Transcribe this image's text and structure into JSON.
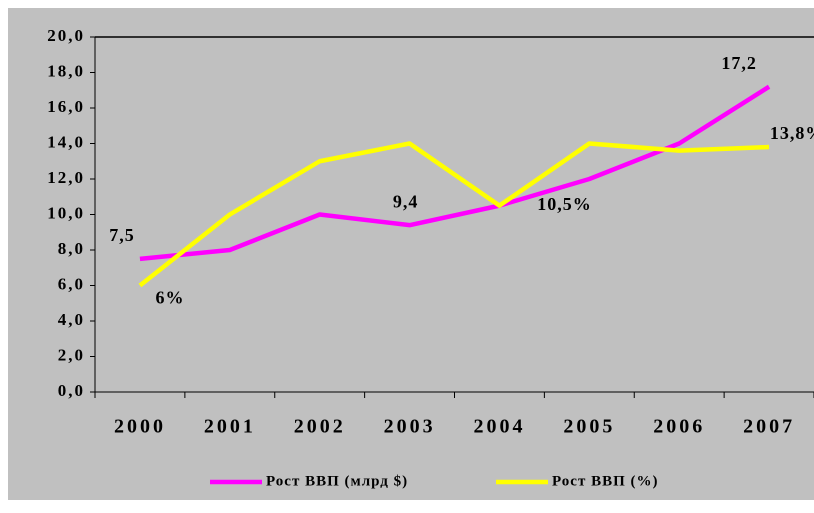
{
  "chart_data": {
    "type": "line",
    "categories": [
      "2000",
      "2001",
      "2002",
      "2003",
      "2004",
      "2005",
      "2006",
      "2007"
    ],
    "series": [
      {
        "name": "Рост ВВП (млрд $)",
        "color": "#ff00ff",
        "values": [
          7.5,
          8.0,
          10.0,
          9.4,
          10.5,
          12.0,
          14.0,
          17.2
        ],
        "value_labels": [
          "7,5",
          null,
          null,
          "9,4",
          null,
          null,
          null,
          "17,2"
        ]
      },
      {
        "name": "Рост ВВП (%)",
        "color": "#ffff00",
        "values": [
          6,
          10,
          13,
          14,
          10.5,
          14,
          13.6,
          13.8
        ],
        "value_labels": [
          "6%",
          null,
          null,
          null,
          "10,5%",
          null,
          null,
          "13,8%"
        ]
      }
    ],
    "ylim": [
      0,
      20
    ],
    "yticks": [
      {
        "value": 0,
        "label": "0,0"
      },
      {
        "value": 2,
        "label": "2,0"
      },
      {
        "value": 4,
        "label": "4,0"
      },
      {
        "value": 6,
        "label": "6,0"
      },
      {
        "value": 8,
        "label": "8,0"
      },
      {
        "value": 10,
        "label": "10,0"
      },
      {
        "value": 12,
        "label": "12,0"
      },
      {
        "value": 14,
        "label": "14,0"
      },
      {
        "value": 16,
        "label": "16,0"
      },
      {
        "value": 18,
        "label": "18,0"
      },
      {
        "value": 20,
        "label": "20,0"
      }
    ],
    "legend": "bottom"
  }
}
